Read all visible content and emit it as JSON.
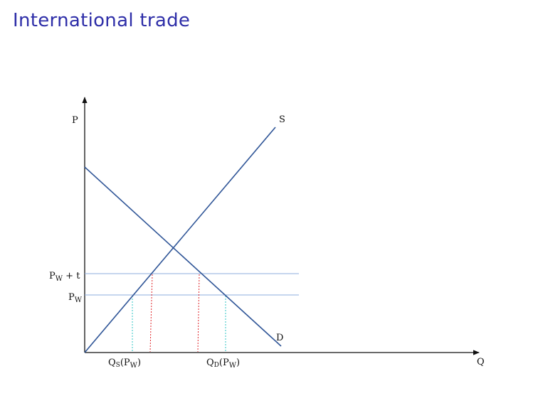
{
  "slide": {
    "title": "International trade"
  },
  "diagram": {
    "axes": {
      "vertical": "P",
      "horizontal": "Q"
    },
    "curves": {
      "supply": "S",
      "demand": "D"
    },
    "price_labels": {
      "tariff": {
        "base": "P",
        "sub": "W",
        "suffix": " + t"
      },
      "world": {
        "base": "P",
        "sub": "W"
      }
    },
    "quantity_labels": {
      "supplied": {
        "base": "Q",
        "sub": "S",
        "open": "(P",
        "inner_sub": "W",
        "close": ")"
      },
      "demanded": {
        "base": "Q",
        "sub": "D",
        "open": "(P",
        "inner_sub": "W",
        "close": ")"
      }
    },
    "colors": {
      "curve": "#2f5597",
      "axis": "#111111",
      "price_line": "#8eaedc",
      "world_drop": "#2ec4c4",
      "tariff_drop": "#e0262b"
    }
  }
}
